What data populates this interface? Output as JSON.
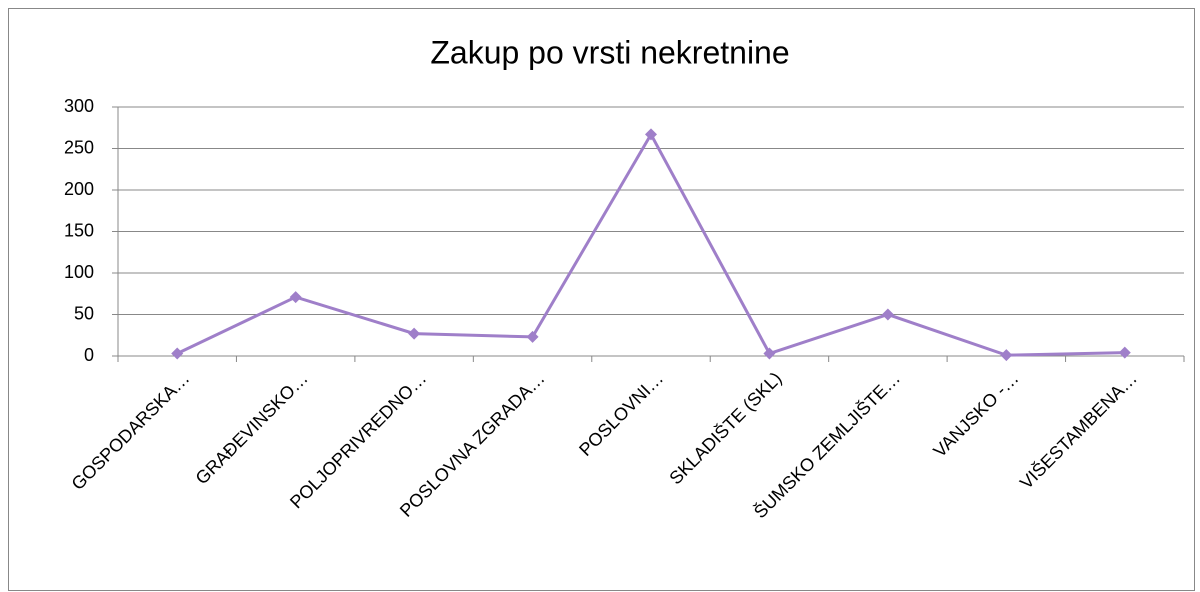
{
  "chart_data": {
    "type": "line",
    "title": "Zakup po vrsti nekretnine",
    "categories": [
      "GOSPODARSKA…",
      "GRAĐEVINSKO…",
      "POLJOPRIVREDNO…",
      "POSLOVNA ZGRADA…",
      "POSLOVNI…",
      "SKLADIŠTE (SKL)",
      "ŠUMSKO ZEMLJIŠTE…",
      "VANJSKO -…",
      "VIŠESTAMBENA…"
    ],
    "series": [
      {
        "color": "#9f7fc9",
        "values": [
          3,
          71,
          27,
          23,
          267,
          3,
          50,
          1,
          4
        ]
      }
    ],
    "ylim": [
      0,
      300
    ],
    "yticks": [
      0,
      50,
      100,
      150,
      200,
      250,
      300
    ],
    "grid": true
  }
}
